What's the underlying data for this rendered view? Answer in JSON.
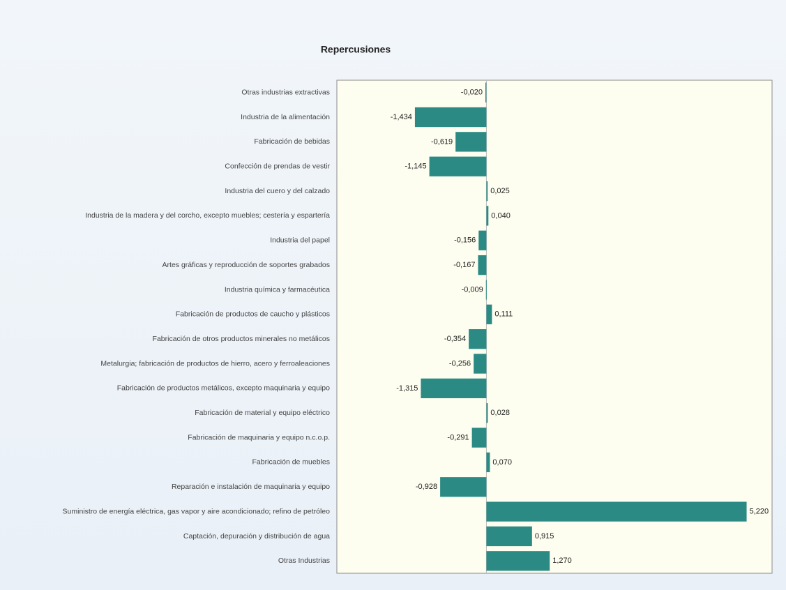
{
  "chart_data": {
    "type": "bar",
    "orientation": "horizontal",
    "title": "Repercusiones",
    "categories": [
      "Otras industrias extractivas",
      "Industria de la alimentación",
      "Fabricación de bebidas",
      "Confección de prendas de vestir",
      "Industria del cuero y del calzado",
      "Industria de la madera y del corcho, excepto muebles; cestería y espartería",
      "Industria del papel",
      "Artes gráficas y reproducción de soportes grabados",
      "Industria química y farmacéutica",
      "Fabricación de productos de caucho y plásticos",
      "Fabricación de otros productos minerales no metálicos",
      "Metalurgia; fabricación de productos de hierro, acero y ferroaleaciones",
      "Fabricación de productos metálicos, excepto maquinaria y equipo",
      "Fabricación de material y equipo eléctrico",
      "Fabricación de maquinaria y equipo n.c.o.p.",
      "Fabricación de muebles",
      "Reparación e instalación de maquinaria y equipo",
      "Suministro de energía eléctrica, gas vapor y aire acondicionado; refino de petróleo",
      "Captación, depuración y distribución de agua",
      "Otras Industrias"
    ],
    "values": [
      -0.02,
      -1.434,
      -0.619,
      -1.145,
      0.025,
      0.04,
      -0.156,
      -0.167,
      -0.009,
      0.111,
      -0.354,
      -0.256,
      -1.315,
      0.028,
      -0.291,
      0.07,
      -0.928,
      5.22,
      0.915,
      1.27
    ],
    "value_labels": [
      "-0,020",
      "-1,434",
      "-0,619",
      "-1,145",
      "0,025",
      "0,040",
      "-0,156",
      "-0,167",
      "-0,009",
      "0,111",
      "-0,354",
      "-0,256",
      "-1,315",
      "0,028",
      "-0,291",
      "0,070",
      "-0,928",
      "5,220",
      "0,915",
      "1,270"
    ],
    "color": "#2b8a84",
    "xlim": [
      -3,
      5.73
    ]
  }
}
